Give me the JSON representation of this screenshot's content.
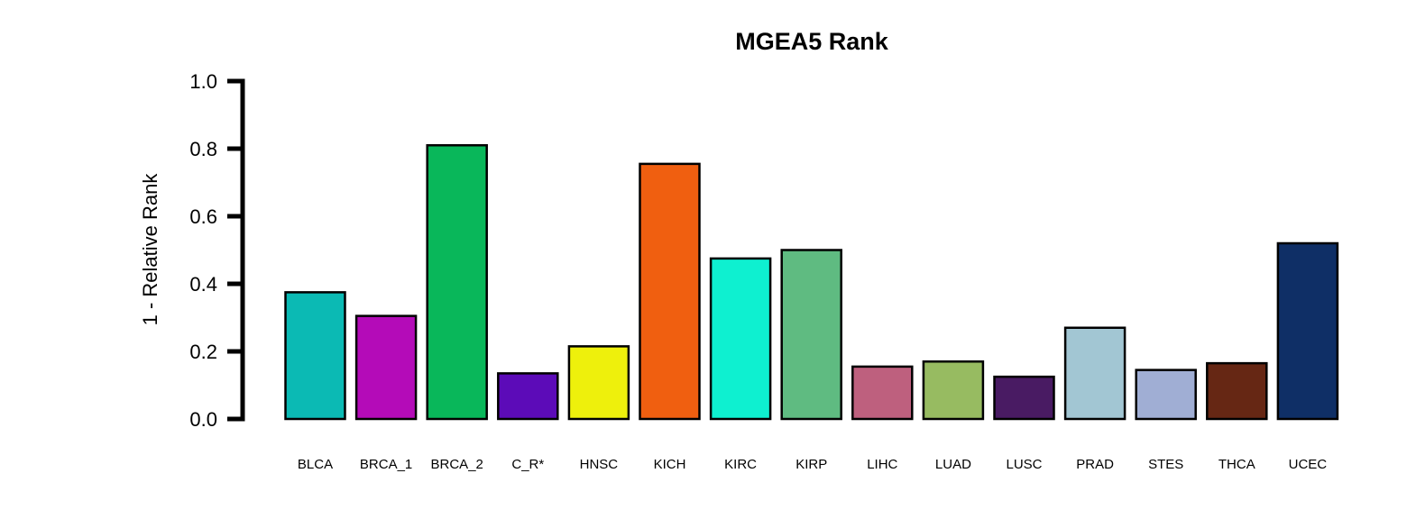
{
  "chart_data": {
    "type": "bar",
    "title": "MGEA5 Rank",
    "xlabel": "",
    "ylabel": "1 - Relative Rank",
    "ylim": [
      0,
      1
    ],
    "yticks": [
      "0.0",
      "0.2",
      "0.4",
      "0.6",
      "0.8",
      "1.0"
    ],
    "grid": false,
    "legend": "none",
    "categories": [
      "BLCA",
      "BRCA_1",
      "BRCA_2",
      "C_R*",
      "HNSC",
      "KICH",
      "KIRC",
      "KIRP",
      "LIHC",
      "LUAD",
      "LUSC",
      "PRAD",
      "STES",
      "THCA",
      "UCEC"
    ],
    "values": [
      0.375,
      0.305,
      0.81,
      0.135,
      0.215,
      0.755,
      0.475,
      0.5,
      0.155,
      0.17,
      0.125,
      0.27,
      0.145,
      0.165,
      0.52
    ],
    "colors": [
      "#0BBAB4",
      "#B40BB8",
      "#09B75A",
      "#5C0BB8",
      "#EEF00C",
      "#F05F10",
      "#0EF0D0",
      "#5FBB81",
      "#BE607E",
      "#97BB61",
      "#491B63",
      "#A2C6D3",
      "#A0AED4",
      "#662714",
      "#0F2F66"
    ]
  }
}
